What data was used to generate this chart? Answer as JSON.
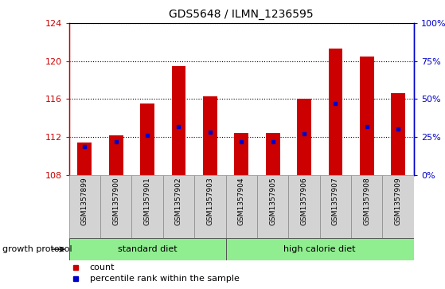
{
  "title": "GDS5648 / ILMN_1236595",
  "samples": [
    "GSM1357899",
    "GSM1357900",
    "GSM1357901",
    "GSM1357902",
    "GSM1357903",
    "GSM1357904",
    "GSM1357905",
    "GSM1357906",
    "GSM1357907",
    "GSM1357908",
    "GSM1357909"
  ],
  "counts": [
    111.4,
    112.2,
    115.5,
    119.5,
    116.3,
    112.4,
    112.4,
    116.0,
    121.3,
    120.5,
    116.6
  ],
  "percentile_values": [
    111.0,
    111.5,
    112.2,
    113.1,
    112.5,
    111.5,
    111.5,
    112.3,
    115.5,
    113.1,
    112.8
  ],
  "ymin": 108,
  "ymax": 124,
  "yticks": [
    108,
    112,
    116,
    120,
    124
  ],
  "y2ticks_pct": [
    0,
    25,
    50,
    75,
    100
  ],
  "ylabel_color": "#cc0000",
  "ylabel2_color": "#0000cc",
  "bar_color": "#cc0000",
  "marker_color": "#0000cc",
  "groups": [
    {
      "label": "standard diet",
      "start": 0,
      "end": 5
    },
    {
      "label": "high calorie diet",
      "start": 5,
      "end": 11
    }
  ],
  "group_color": "#90ee90",
  "group_label_prefix": "growth protocol",
  "legend_items": [
    {
      "label": "count",
      "color": "#cc0000"
    },
    {
      "label": "percentile rank within the sample",
      "color": "#0000cc"
    }
  ],
  "bg_color": "#ffffff",
  "sample_box_color": "#d3d3d3",
  "bar_width": 0.45,
  "grid_linestyle": ":",
  "grid_color": "#000000",
  "grid_linewidth": 0.8
}
